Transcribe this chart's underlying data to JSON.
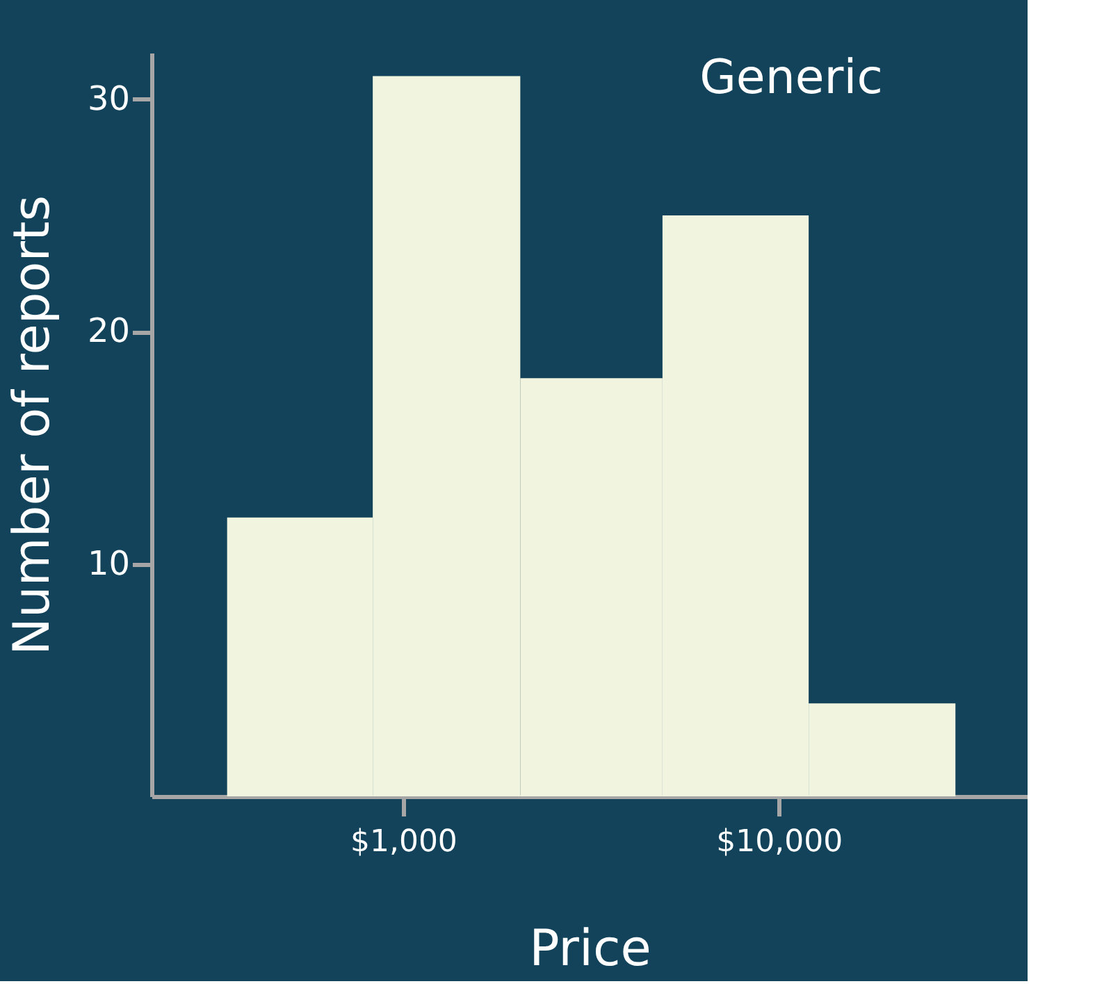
{
  "chart_data": {
    "type": "histogram",
    "xlabel": "Price",
    "ylabel": "Number of reports",
    "annotations": [
      "Generic"
    ],
    "bins": [
      340,
      830,
      2050,
      4900,
      12000,
      29500
    ],
    "values": [
      12,
      31,
      18,
      25,
      4
    ],
    "color": "#f1f4df",
    "log": "x",
    "xlim": [
      214,
      45900
    ],
    "xticks": [
      {
        "value": 1000,
        "label": "$1,000"
      },
      {
        "value": 10000,
        "label": "$10,000"
      }
    ],
    "ylim": [
      0,
      32
    ],
    "yticks": [
      10,
      20,
      30
    ],
    "grid": false
  }
}
